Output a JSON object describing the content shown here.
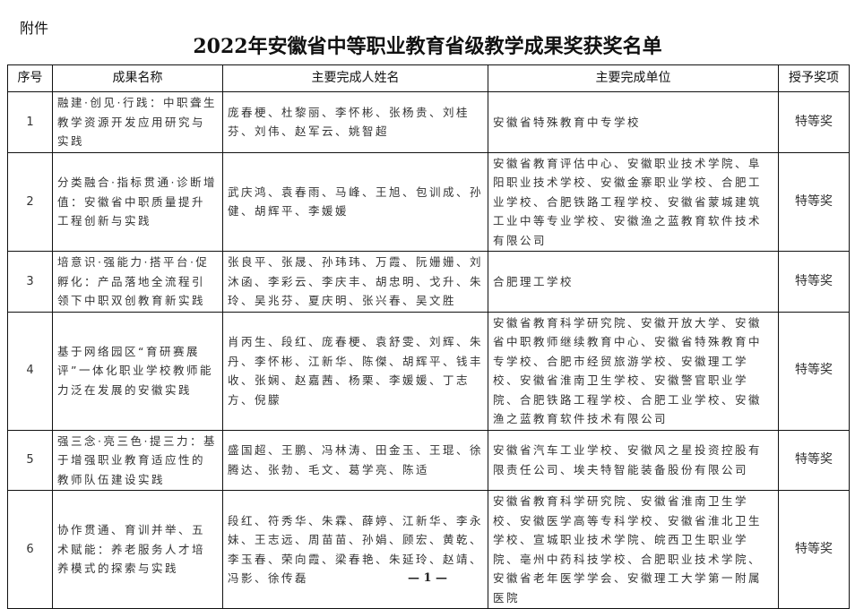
{
  "attachment_label": "附件",
  "title": "2022年安徽省中等职业教育省级教学成果奖获奖名单",
  "table": {
    "headers": [
      "序号",
      "成果名称",
      "主要完成人姓名",
      "主要完成单位",
      "授予奖项"
    ],
    "rows": [
      {
        "no": "1",
        "name": "融建·创见·行践：中职聋生教学资源开发应用研究与实践",
        "people": "庞春梗、杜黎丽、李怀彬、张杨贵、刘桂芬、刘伟、赵军云、姚智超",
        "units": "安徽省特殊教育中专学校",
        "award": "特等奖"
      },
      {
        "no": "2",
        "name": "分类融合·指标贯通·诊断增值：安徽省中职质量提升工程创新与实践",
        "people": "武庆鸿、袁春雨、马峰、王旭、包训成、孙健、胡辉平、李媛媛",
        "units": "安徽省教育评估中心、安徽职业技术学院、阜阳职业技术学校、安徽金寨职业学校、合肥工业学校、合肥铁路工程学校、安徽省蒙城建筑工业中等专业学校、安徽渔之蓝教育软件技术有限公司",
        "award": "特等奖"
      },
      {
        "no": "3",
        "name": "培意识·强能力·搭平台·促孵化：产品落地全流程引领下中职双创教育新实践",
        "people": "张良平、张晟、孙玮玮、万霞、阮姗姗、刘沐函、李彩云、李庆丰、胡忠明、戈升、朱玲、吴兆芬、夏庆明、张兴春、吴文胜",
        "units": "合肥理工学校",
        "award": "特等奖"
      },
      {
        "no": "4",
        "name": "基于网络园区“育研赛展评”一体化职业学校教师能力泛在发展的安徽实践",
        "people": "肖丙生、段红、庞春梗、袁舒雯、刘辉、朱丹、李怀彬、江新华、陈傑、胡辉平、钱丰收、张娴、赵嘉茜、杨栗、李媛媛、丁志方、倪朦",
        "units": "安徽省教育科学研究院、安徽开放大学、安徽省中职教师继续教育中心、安徽省特殊教育中专学校、合肥市经贸旅游学校、安徽理工学校、安徽省淮南卫生学校、安徽警官职业学院、合肥铁路工程学校、合肥工业学校、安徽渔之蓝教育软件技术有限公司",
        "award": "特等奖"
      },
      {
        "no": "5",
        "name": "强三念·亮三色·提三力：基于增强职业教育适应性的教师队伍建设实践",
        "people": "盛国超、王鹏、冯林涛、田金玉、王琨、徐腾达、张勃、毛文、葛学亮、陈适",
        "units": "安徽省汽车工业学校、安徽风之星投资控股有限责任公司、埃夫特智能装备股份有限公司",
        "award": "特等奖"
      },
      {
        "no": "6",
        "name": "协作贯通、育训并举、五术赋能：养老服务人才培养模式的探索与实践",
        "people": "段红、符秀华、朱霖、薛婷、江新华、李永妹、王志远、周苗苗、孙娟、顾宏、黄乾、李玉春、荣向霞、梁春艳、朱延玲、赵靖、冯影、徐传磊",
        "units": "安徽省教育科学研究院、安徽省淮南卫生学校、安徽医学高等专科学校、安徽省淮北卫生学校、宣城职业技术学院、皖西卫生职业学院、亳州中药科技学校、合肥职业技术学院、安徽省老年医学学会、安徽理工大学第一附属医院",
        "award": "特等奖"
      }
    ]
  },
  "page_number": "— 1 —"
}
